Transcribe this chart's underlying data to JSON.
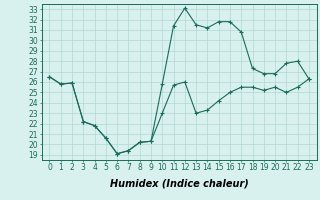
{
  "xlabel": "Humidex (Indice chaleur)",
  "x": [
    0,
    1,
    2,
    3,
    4,
    5,
    6,
    7,
    8,
    9,
    10,
    11,
    12,
    13,
    14,
    15,
    16,
    17,
    18,
    19,
    20,
    21,
    22,
    23
  ],
  "series1": [
    26.5,
    25.8,
    25.9,
    22.2,
    21.8,
    20.6,
    19.1,
    19.4,
    20.2,
    20.3,
    23.0,
    25.7,
    26.0,
    23.0,
    23.3,
    24.2,
    25.0,
    25.5,
    25.5,
    25.2,
    25.5,
    25.0,
    25.5,
    26.3
  ],
  "series2": [
    26.5,
    25.8,
    25.9,
    22.2,
    21.8,
    20.6,
    19.1,
    19.4,
    20.2,
    20.3,
    25.8,
    31.4,
    33.1,
    31.5,
    31.2,
    31.8,
    31.8,
    30.8,
    27.3,
    26.8,
    26.8,
    27.8,
    28.0,
    26.3
  ],
  "color": "#1a6b5a",
  "bg_color": "#d8f0ee",
  "grid_color": "#b0d8d4",
  "ylim": [
    18.5,
    33.5
  ],
  "yticks": [
    19,
    20,
    21,
    22,
    23,
    24,
    25,
    26,
    27,
    28,
    29,
    30,
    31,
    32,
    33
  ],
  "xticks": [
    0,
    1,
    2,
    3,
    4,
    5,
    6,
    7,
    8,
    9,
    10,
    11,
    12,
    13,
    14,
    15,
    16,
    17,
    18,
    19,
    20,
    21,
    22,
    23
  ],
  "tick_fontsize": 5.5,
  "label_fontsize": 7
}
